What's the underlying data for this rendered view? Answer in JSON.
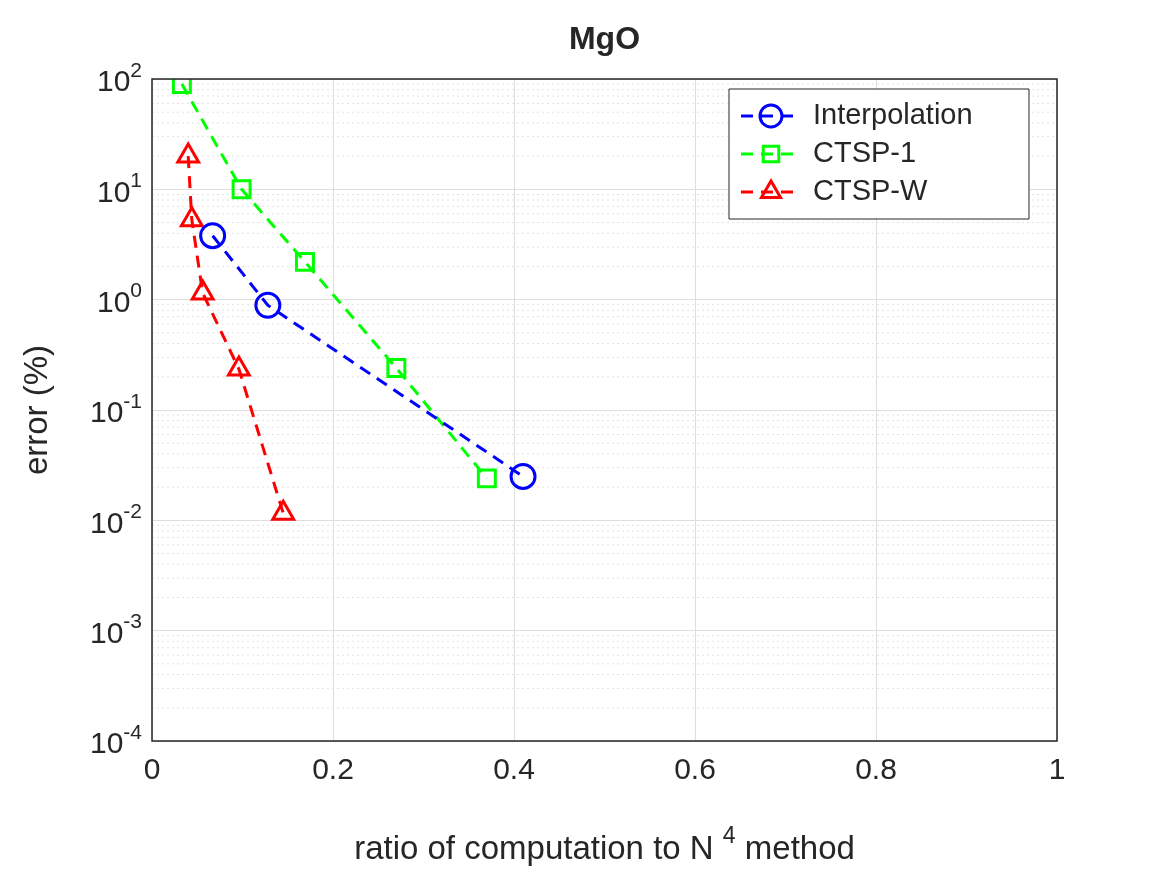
{
  "chart_data": {
    "type": "line",
    "title": "MgO",
    "xlabel": "ratio of computation to N $^{4}$ method",
    "ylabel": "error (%)",
    "log": "y",
    "grid": true,
    "legend": "top right",
    "line_style": "dashed",
    "xlim": [
      0,
      1
    ],
    "xticks": [
      0,
      0.2,
      0.4,
      0.6,
      0.8,
      1
    ],
    "ylim": [
      0.0001,
      100
    ],
    "yticks": [
      {
        "value": 0.0001,
        "label": "10$^{-4}$"
      },
      {
        "value": 0.001,
        "label": "10$^{-3}$"
      },
      {
        "value": 0.01,
        "label": "10$^{-2}$"
      },
      {
        "value": 0.1,
        "label": "10$^{-1}$"
      },
      {
        "value": 1,
        "label": "10$^{0}$"
      },
      {
        "value": 10,
        "label": "10$^{1}$"
      },
      {
        "value": 100,
        "label": "10$^{2}$"
      }
    ],
    "series": [
      {
        "name": "Interpolation",
        "color": "#0000ff",
        "marker": "circle",
        "x": [
          0.067,
          0.128,
          0.41
        ],
        "values": [
          3.8,
          0.89,
          0.025
        ]
      },
      {
        "name": "CTSP-1",
        "color": "#00ff00",
        "marker": "square",
        "x": [
          0.033,
          0.099,
          0.169,
          0.27,
          0.37
        ],
        "values": [
          90,
          10,
          2.2,
          0.24,
          0.024
        ]
      },
      {
        "name": "CTSP-W",
        "color": "#ff0000",
        "marker": "triangle",
        "x": [
          0.04,
          0.044,
          0.056,
          0.096,
          0.145
        ],
        "values": [
          20,
          5.3,
          1.15,
          0.235,
          0.0116
        ]
      }
    ]
  }
}
